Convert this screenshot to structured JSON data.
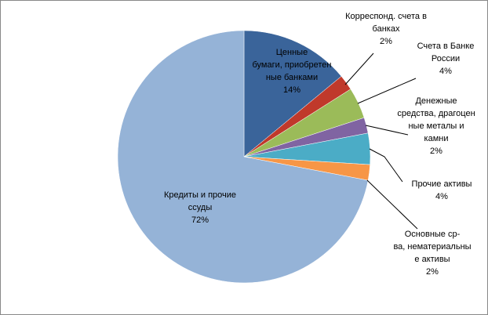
{
  "chart_data": {
    "type": "pie",
    "categories": [
      "Ценные\nбумаги, приобретен\nные банками",
      "Корреспонд. счета в\nбанках",
      "Счета в Банке\nРоссии",
      "Денежные\nсредства, драгоцен\nные металы и\nкамни",
      "Прочие активы",
      "Основные ср-\nва, нематериальны\nе активы",
      "Кредиты и прочие\nссуды"
    ],
    "values": [
      14,
      2,
      4,
      2,
      4,
      2,
      72
    ],
    "value_labels": [
      "14%",
      "2%",
      "4%",
      "2%",
      "4%",
      "2%",
      "72%"
    ],
    "colors": [
      "#3a649a",
      "#c0392b",
      "#9bbb59",
      "#8064a2",
      "#4bacc6",
      "#f79646",
      "#95b3d7"
    ]
  }
}
